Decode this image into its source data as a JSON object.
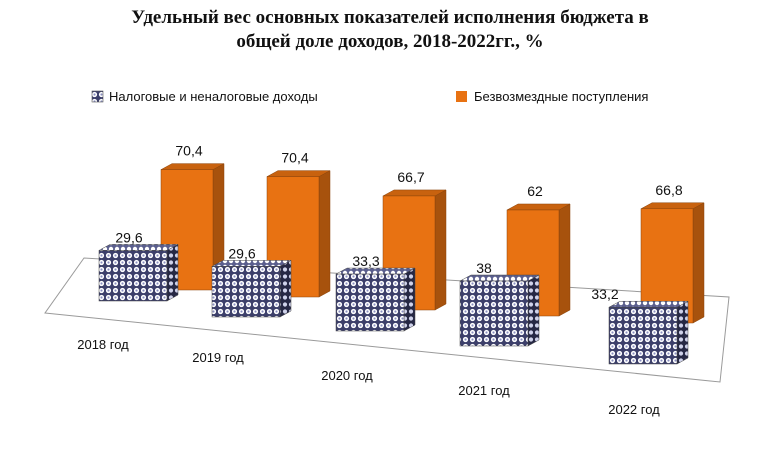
{
  "chart_data": {
    "type": "bar",
    "title_lines": [
      "Удельный вес основных показателей исполнения бюджета в",
      "общей доле доходов, 2018-2022гг., %"
    ],
    "categories": [
      "2018 год",
      "2019 год",
      "2020 год",
      "2021 год",
      "2022 год"
    ],
    "series": [
      {
        "name": "Налоговые и неналоговые доходы",
        "values": [
          29.6,
          29.6,
          33.3,
          38,
          33.2
        ],
        "labels": [
          "29,6",
          "29,6",
          "33,3",
          "38",
          "33,2"
        ],
        "color": "#9aa0c4",
        "pattern": "textured"
      },
      {
        "name": "Безвозмездные  поступления",
        "values": [
          70.4,
          70.4,
          66.7,
          62,
          66.8
        ],
        "labels": [
          "70,4",
          "70,4",
          "66,7",
          "62",
          "66,8"
        ],
        "color": "#e87212"
      }
    ],
    "legend_position": "top",
    "style": "3d-columns"
  }
}
